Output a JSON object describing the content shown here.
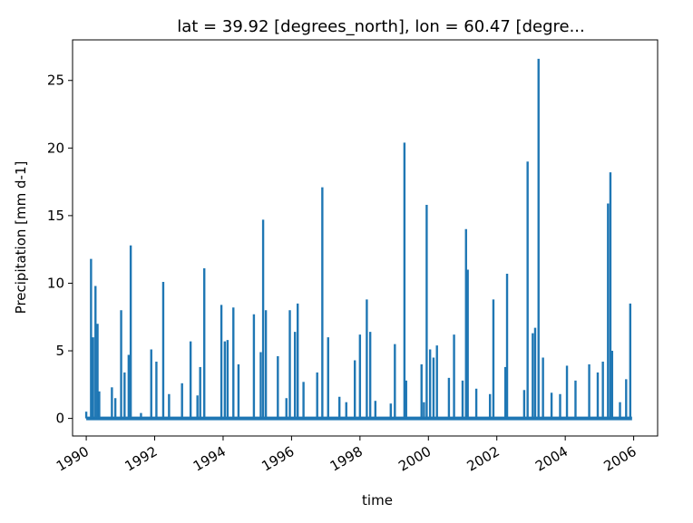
{
  "chart_data": {
    "type": "line",
    "title": "lat = 39.92 [degrees_north], lon = 60.47 [degre...",
    "xlabel": "time",
    "ylabel": "Precipitation [mm d-1]",
    "xlim": [
      1989.6,
      2006.7
    ],
    "ylim": [
      -1.3,
      28.0
    ],
    "x_ticks": [
      1990,
      1992,
      1994,
      1996,
      1998,
      2000,
      2002,
      2004,
      2006
    ],
    "x_tick_labels": [
      "1990",
      "1992",
      "1994",
      "1996",
      "1998",
      "2000",
      "2002",
      "2004",
      "2006"
    ],
    "y_ticks": [
      0,
      5,
      10,
      15,
      20,
      25
    ],
    "y_tick_labels": [
      "0",
      "5",
      "10",
      "15",
      "20",
      "25"
    ],
    "grid": false,
    "series": [
      {
        "color": "#1f77b4",
        "x": [
          1990.0,
          1990.14,
          1990.2,
          1990.27,
          1990.33,
          1990.38,
          1990.75,
          1990.85,
          1991.02,
          1991.12,
          1991.24,
          1991.3,
          1991.6,
          1991.9,
          1992.05,
          1992.25,
          1992.42,
          1992.8,
          1993.05,
          1993.25,
          1993.33,
          1993.45,
          1993.95,
          1994.05,
          1994.13,
          1994.3,
          1994.45,
          1994.9,
          1995.1,
          1995.17,
          1995.25,
          1995.6,
          1995.85,
          1995.95,
          1996.1,
          1996.18,
          1996.35,
          1996.75,
          1996.9,
          1997.07,
          1997.4,
          1997.6,
          1997.85,
          1998.0,
          1998.2,
          1998.3,
          1998.45,
          1998.9,
          1999.02,
          1999.3,
          1999.35,
          1999.8,
          1999.87,
          1999.95,
          2000.05,
          2000.15,
          2000.25,
          2000.6,
          2000.75,
          2001.0,
          2001.1,
          2001.15,
          2001.4,
          2001.8,
          2001.9,
          2002.25,
          2002.3,
          2002.8,
          2002.9,
          2003.05,
          2003.12,
          2003.22,
          2003.35,
          2003.6,
          2003.85,
          2004.05,
          2004.3,
          2004.7,
          2004.95,
          2005.1,
          2005.25,
          2005.32,
          2005.37,
          2005.6,
          2005.78,
          2005.9
        ],
        "y": [
          0.5,
          11.8,
          6.0,
          9.8,
          7.0,
          2.0,
          2.3,
          1.5,
          8.0,
          3.4,
          4.7,
          12.8,
          0.4,
          5.1,
          4.2,
          10.1,
          1.8,
          2.6,
          5.7,
          1.7,
          3.8,
          11.1,
          8.4,
          5.7,
          5.8,
          8.2,
          4.0,
          7.7,
          4.9,
          14.7,
          8.0,
          4.6,
          1.5,
          8.0,
          6.4,
          8.5,
          2.7,
          3.4,
          17.1,
          6.0,
          1.6,
          1.2,
          4.3,
          6.2,
          8.8,
          6.4,
          1.3,
          1.1,
          5.5,
          20.4,
          2.8,
          4.0,
          1.2,
          15.8,
          5.1,
          4.5,
          5.4,
          3.0,
          6.2,
          2.8,
          14.0,
          11.0,
          2.2,
          1.8,
          8.8,
          3.8,
          10.7,
          2.1,
          19.0,
          6.3,
          6.7,
          26.6,
          4.5,
          1.9,
          1.8,
          3.9,
          2.8,
          4.0,
          3.4,
          4.2,
          15.9,
          18.2,
          5.0,
          1.2,
          2.9,
          8.5
        ]
      }
    ]
  }
}
